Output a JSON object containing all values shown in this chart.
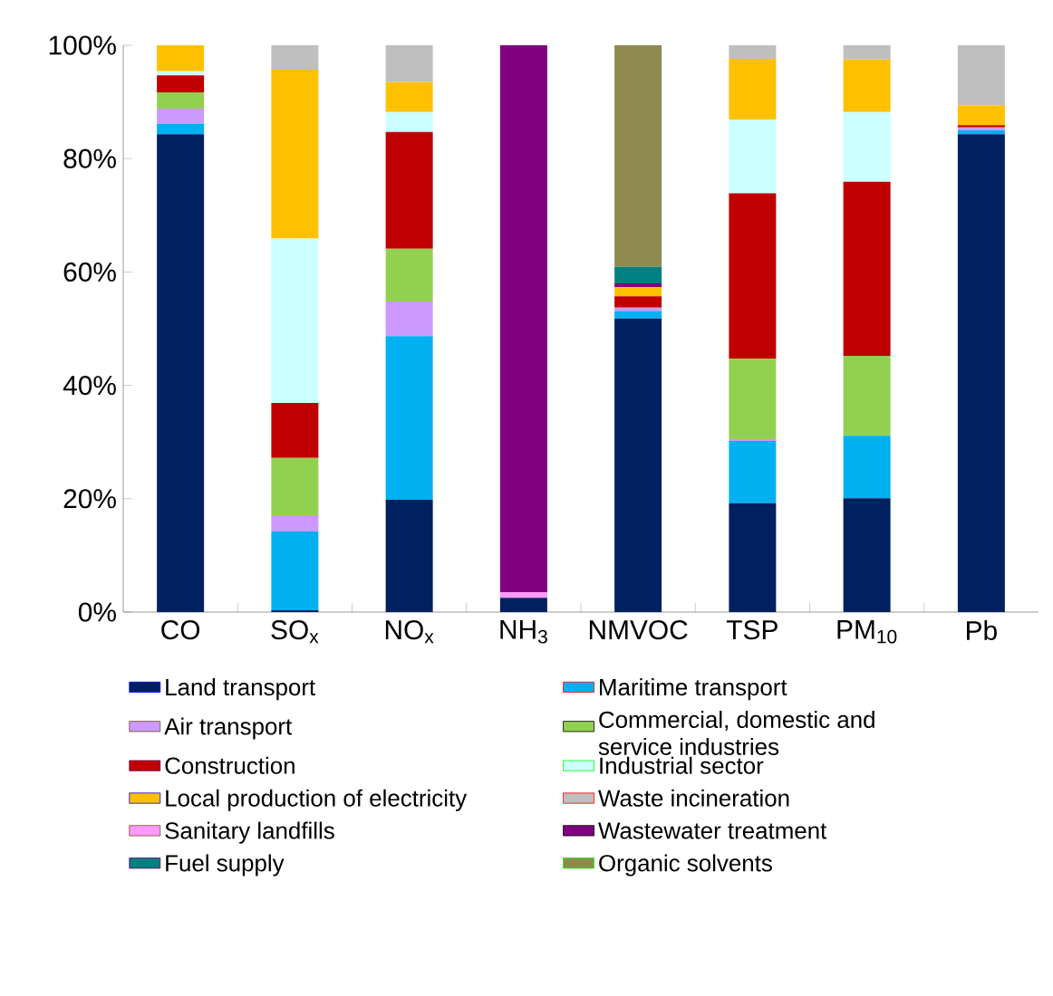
{
  "chart_data": {
    "type": "bar",
    "stacked": true,
    "categories": [
      "CO",
      "SO$_{x}$",
      "NO$_{x}$",
      "NH$_{3}$",
      "NMVOC",
      "TSP",
      "PM$_{10}$",
      "Pb"
    ],
    "ylim": [
      0,
      100
    ],
    "yticks": [
      {
        "value": 0,
        "label": "0%"
      },
      {
        "value": 20,
        "label": "20%"
      },
      {
        "value": 40,
        "label": "40%"
      },
      {
        "value": 60,
        "label": "60%"
      },
      {
        "value": 80,
        "label": "80%"
      },
      {
        "value": 100,
        "label": "100%"
      }
    ],
    "legend": "bottom",
    "grid": false,
    "series": [
      {
        "name": "Land transport",
        "color": "#002060",
        "values": [
          84.3,
          0.3,
          19.8,
          2.5,
          51.8,
          19.2,
          20.1,
          84.3
        ]
      },
      {
        "name": "Maritime transport",
        "color": "#00b0f0",
        "values": [
          1.8,
          13.9,
          28.9,
          null,
          1.3,
          11.0,
          11.0,
          0.7
        ]
      },
      {
        "name": "Air transport",
        "color": "#cc99ff",
        "values": [
          2.7,
          2.9,
          6.1,
          null,
          0.6,
          0.3,
          null,
          0.5
        ]
      },
      {
        "name": "Commercial, domestic and service industries",
        "color": "#92d050",
        "values": [
          2.9,
          10.1,
          9.3,
          null,
          null,
          14.2,
          14.1,
          null
        ]
      },
      {
        "name": "Construction",
        "color": "#c00000",
        "values": [
          3.0,
          9.7,
          20.6,
          null,
          2.0,
          29.2,
          30.7,
          0.4
        ]
      },
      {
        "name": "Industrial sector",
        "color": "#ccffff",
        "values": [
          0.7,
          29.0,
          3.5,
          null,
          null,
          13.0,
          12.3,
          null
        ]
      },
      {
        "name": "Local production of electricity",
        "color": "#ffc000",
        "values": [
          4.6,
          29.8,
          5.3,
          null,
          1.6,
          10.7,
          9.3,
          3.5
        ]
      },
      {
        "name": "Waste incineration",
        "color": "#bfbfbf",
        "values": [
          null,
          4.3,
          6.5,
          null,
          null,
          2.4,
          2.5,
          10.6
        ]
      },
      {
        "name": "Sanitary landfills",
        "color": "#ff99ff",
        "values": [
          null,
          null,
          null,
          1.0,
          null,
          null,
          null,
          null
        ]
      },
      {
        "name": "Wastewater treatment",
        "color": "#800080",
        "values": [
          null,
          null,
          null,
          96.5,
          0.7,
          null,
          null,
          null
        ]
      },
      {
        "name": "Fuel supply",
        "color": "#008080",
        "values": [
          null,
          null,
          null,
          null,
          2.9,
          null,
          null,
          null
        ]
      },
      {
        "name": "Organic solvents",
        "color": "#8f8a50",
        "values": [
          null,
          null,
          null,
          null,
          39.1,
          null,
          null,
          null
        ]
      }
    ]
  }
}
